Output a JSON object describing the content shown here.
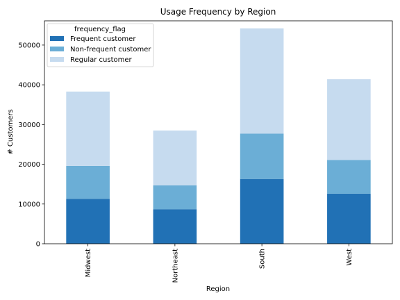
{
  "chart_data": {
    "type": "bar",
    "stacked": true,
    "title": "Usage Frequency by Region",
    "xlabel": "Region",
    "ylabel": "# Customers",
    "categories": [
      "Midwest",
      "Northeast",
      "South",
      "West"
    ],
    "series": [
      {
        "name": "Frequent customer",
        "values": [
          11300,
          8700,
          16300,
          12600
        ],
        "color": "#2171b5"
      },
      {
        "name": "Non-frequent customer",
        "values": [
          8300,
          6000,
          11400,
          8500
        ],
        "color": "#6baed6"
      },
      {
        "name": "Regular customer",
        "values": [
          18700,
          13800,
          26500,
          20300
        ],
        "color": "#c6dbef"
      }
    ],
    "ylim": [
      0,
      56100
    ],
    "yticks": [
      0,
      10000,
      20000,
      30000,
      40000,
      50000
    ],
    "legend": {
      "title": "frequency_flag",
      "placement": "top-left"
    },
    "grid": false
  }
}
